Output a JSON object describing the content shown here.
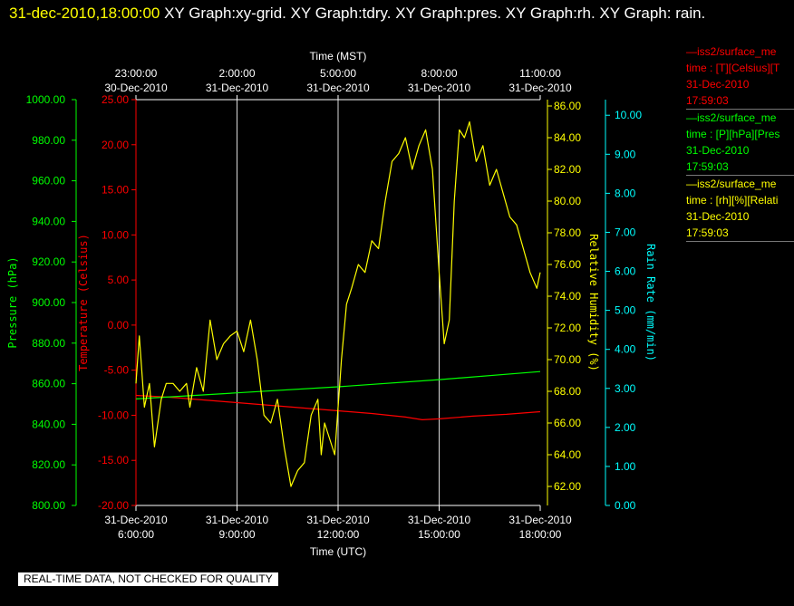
{
  "header": {
    "timestamp": "31-dec-2010,18:00:00",
    "graphs": "XY Graph:xy-grid.  XY Graph:tdry.  XY Graph:pres.  XY Graph:rh.  XY Graph: rain."
  },
  "legend": [
    {
      "line1": "—iss2/surface_me",
      "line2": "time : [T][Celsius][T",
      "line3": "31-Dec-2010",
      "line4": "17:59:03",
      "color": "#ff0000"
    },
    {
      "line1": "—iss2/surface_me",
      "line2": "time : [P][hPa][Pres",
      "line3": "31-Dec-2010",
      "line4": "17:59:03",
      "color": "#00ff00"
    },
    {
      "line1": "—iss2/surface_me",
      "line2": "time : [rh][%][Relati",
      "line3": "31-Dec-2010",
      "line4": "17:59:03",
      "color": "#ffff00"
    }
  ],
  "notice": "REAL-TIME DATA, NOT CHECKED FOR QUALITY",
  "chart_data": {
    "type": "line",
    "x_top_title": "Time (MST)",
    "x_bottom_title": "Time (UTC)",
    "x_range_hours": [
      0,
      12
    ],
    "x_bottom_ticks": [
      {
        "h": 0,
        "l1": "31-Dec-2010",
        "l2": "6:00:00"
      },
      {
        "h": 3,
        "l1": "31-Dec-2010",
        "l2": "9:00:00"
      },
      {
        "h": 6,
        "l1": "31-Dec-2010",
        "l2": "12:00:00"
      },
      {
        "h": 9,
        "l1": "31-Dec-2010",
        "l2": "15:00:00"
      },
      {
        "h": 12,
        "l1": "31-Dec-2010",
        "l2": "18:00:00"
      }
    ],
    "x_top_ticks": [
      {
        "h": 0,
        "l1": "23:00:00",
        "l2": "30-Dec-2010"
      },
      {
        "h": 3,
        "l1": "2:00:00",
        "l2": "31-Dec-2010"
      },
      {
        "h": 6,
        "l1": "5:00:00",
        "l2": "31-Dec-2010"
      },
      {
        "h": 9,
        "l1": "8:00:00",
        "l2": "31-Dec-2010"
      },
      {
        "h": 12,
        "l1": "11:00:00",
        "l2": "31-Dec-2010"
      }
    ],
    "axes": {
      "pressure": {
        "label": "Pressure (hPa)",
        "ylim": [
          800,
          1000
        ],
        "ticks": [
          "800.00",
          "820.00",
          "840.00",
          "860.00",
          "880.00",
          "900.00",
          "920.00",
          "940.00",
          "960.00",
          "980.00",
          "1000.00"
        ],
        "color": "#00ff00"
      },
      "temperature": {
        "label": "Temperature (Celsius)",
        "ylim": [
          -20,
          25
        ],
        "ticks": [
          "-20.00",
          "-15.00",
          "-10.00",
          "-5.00",
          "0.00",
          "5.00",
          "10.00",
          "15.00",
          "20.00",
          "25.00"
        ],
        "color": "#ff0000"
      },
      "humidity": {
        "label": "Relative Humidity (%)",
        "ylim": [
          60.8,
          86.4
        ],
        "ticks": [
          "62.00",
          "64.00",
          "66.00",
          "68.00",
          "70.00",
          "72.00",
          "74.00",
          "76.00",
          "78.00",
          "80.00",
          "82.00",
          "84.00",
          "86.00"
        ],
        "color": "#ffff00"
      },
      "rain": {
        "label": "Rain Rate (mm/min)",
        "ylim": [
          0,
          10.4
        ],
        "ticks": [
          "0.00",
          "1.00",
          "2.00",
          "3.00",
          "4.00",
          "5.00",
          "6.00",
          "7.00",
          "8.00",
          "9.00",
          "10.00"
        ],
        "color": "#00ffff"
      }
    },
    "series": [
      {
        "name": "T [Celsius]",
        "axis": "temperature",
        "color": "#ff0000",
        "x": [
          0,
          1,
          2,
          3,
          4,
          5,
          6,
          7,
          8,
          8.5,
          9,
          10,
          11,
          12
        ],
        "y": [
          -7.8,
          -8.0,
          -8.3,
          -8.6,
          -8.9,
          -9.2,
          -9.5,
          -9.8,
          -10.2,
          -10.5,
          -10.4,
          -10.1,
          -9.9,
          -9.6
        ]
      },
      {
        "name": "P [hPa]",
        "axis": "pressure",
        "color": "#00ff00",
        "x": [
          0,
          3,
          6,
          9,
          12
        ],
        "y": [
          852.5,
          855.5,
          858.5,
          862.0,
          866.0
        ]
      },
      {
        "name": "rh [%]",
        "axis": "humidity",
        "color": "#ffff00",
        "x": [
          0,
          0.1,
          0.25,
          0.4,
          0.55,
          0.75,
          0.9,
          1.1,
          1.3,
          1.5,
          1.6,
          1.8,
          2.0,
          2.2,
          2.4,
          2.6,
          2.8,
          3.0,
          3.2,
          3.4,
          3.6,
          3.8,
          4.0,
          4.2,
          4.4,
          4.6,
          4.8,
          5.0,
          5.2,
          5.4,
          5.5,
          5.6,
          5.75,
          5.9,
          6.0,
          6.05,
          6.1,
          6.25,
          6.4,
          6.6,
          6.8,
          7.0,
          7.2,
          7.4,
          7.6,
          7.8,
          8.0,
          8.2,
          8.4,
          8.6,
          8.8,
          9.0,
          9.15,
          9.3,
          9.45,
          9.6,
          9.75,
          9.9,
          10.1,
          10.3,
          10.5,
          10.7,
          10.9,
          11.1,
          11.3,
          11.5,
          11.7,
          11.9,
          12.0
        ],
        "y": [
          68.5,
          71.5,
          67.0,
          68.5,
          64.5,
          67.5,
          68.5,
          68.5,
          68.0,
          68.5,
          67.0,
          69.5,
          68.0,
          72.5,
          70.0,
          71.0,
          71.5,
          71.8,
          70.5,
          72.5,
          70.0,
          66.5,
          66.0,
          67.5,
          64.5,
          62.0,
          63.0,
          63.5,
          66.5,
          67.5,
          64.0,
          66.0,
          65.0,
          64.0,
          67.0,
          68.5,
          70.0,
          73.5,
          74.5,
          76.0,
          75.5,
          77.5,
          77.0,
          80.0,
          82.5,
          83.0,
          84.0,
          82.0,
          83.5,
          84.5,
          82.0,
          75.5,
          71.0,
          72.5,
          80.0,
          84.5,
          84.0,
          85.0,
          82.5,
          83.5,
          81.0,
          82.0,
          80.5,
          79.0,
          78.5,
          77.0,
          75.5,
          74.5,
          75.5
        ]
      }
    ]
  }
}
